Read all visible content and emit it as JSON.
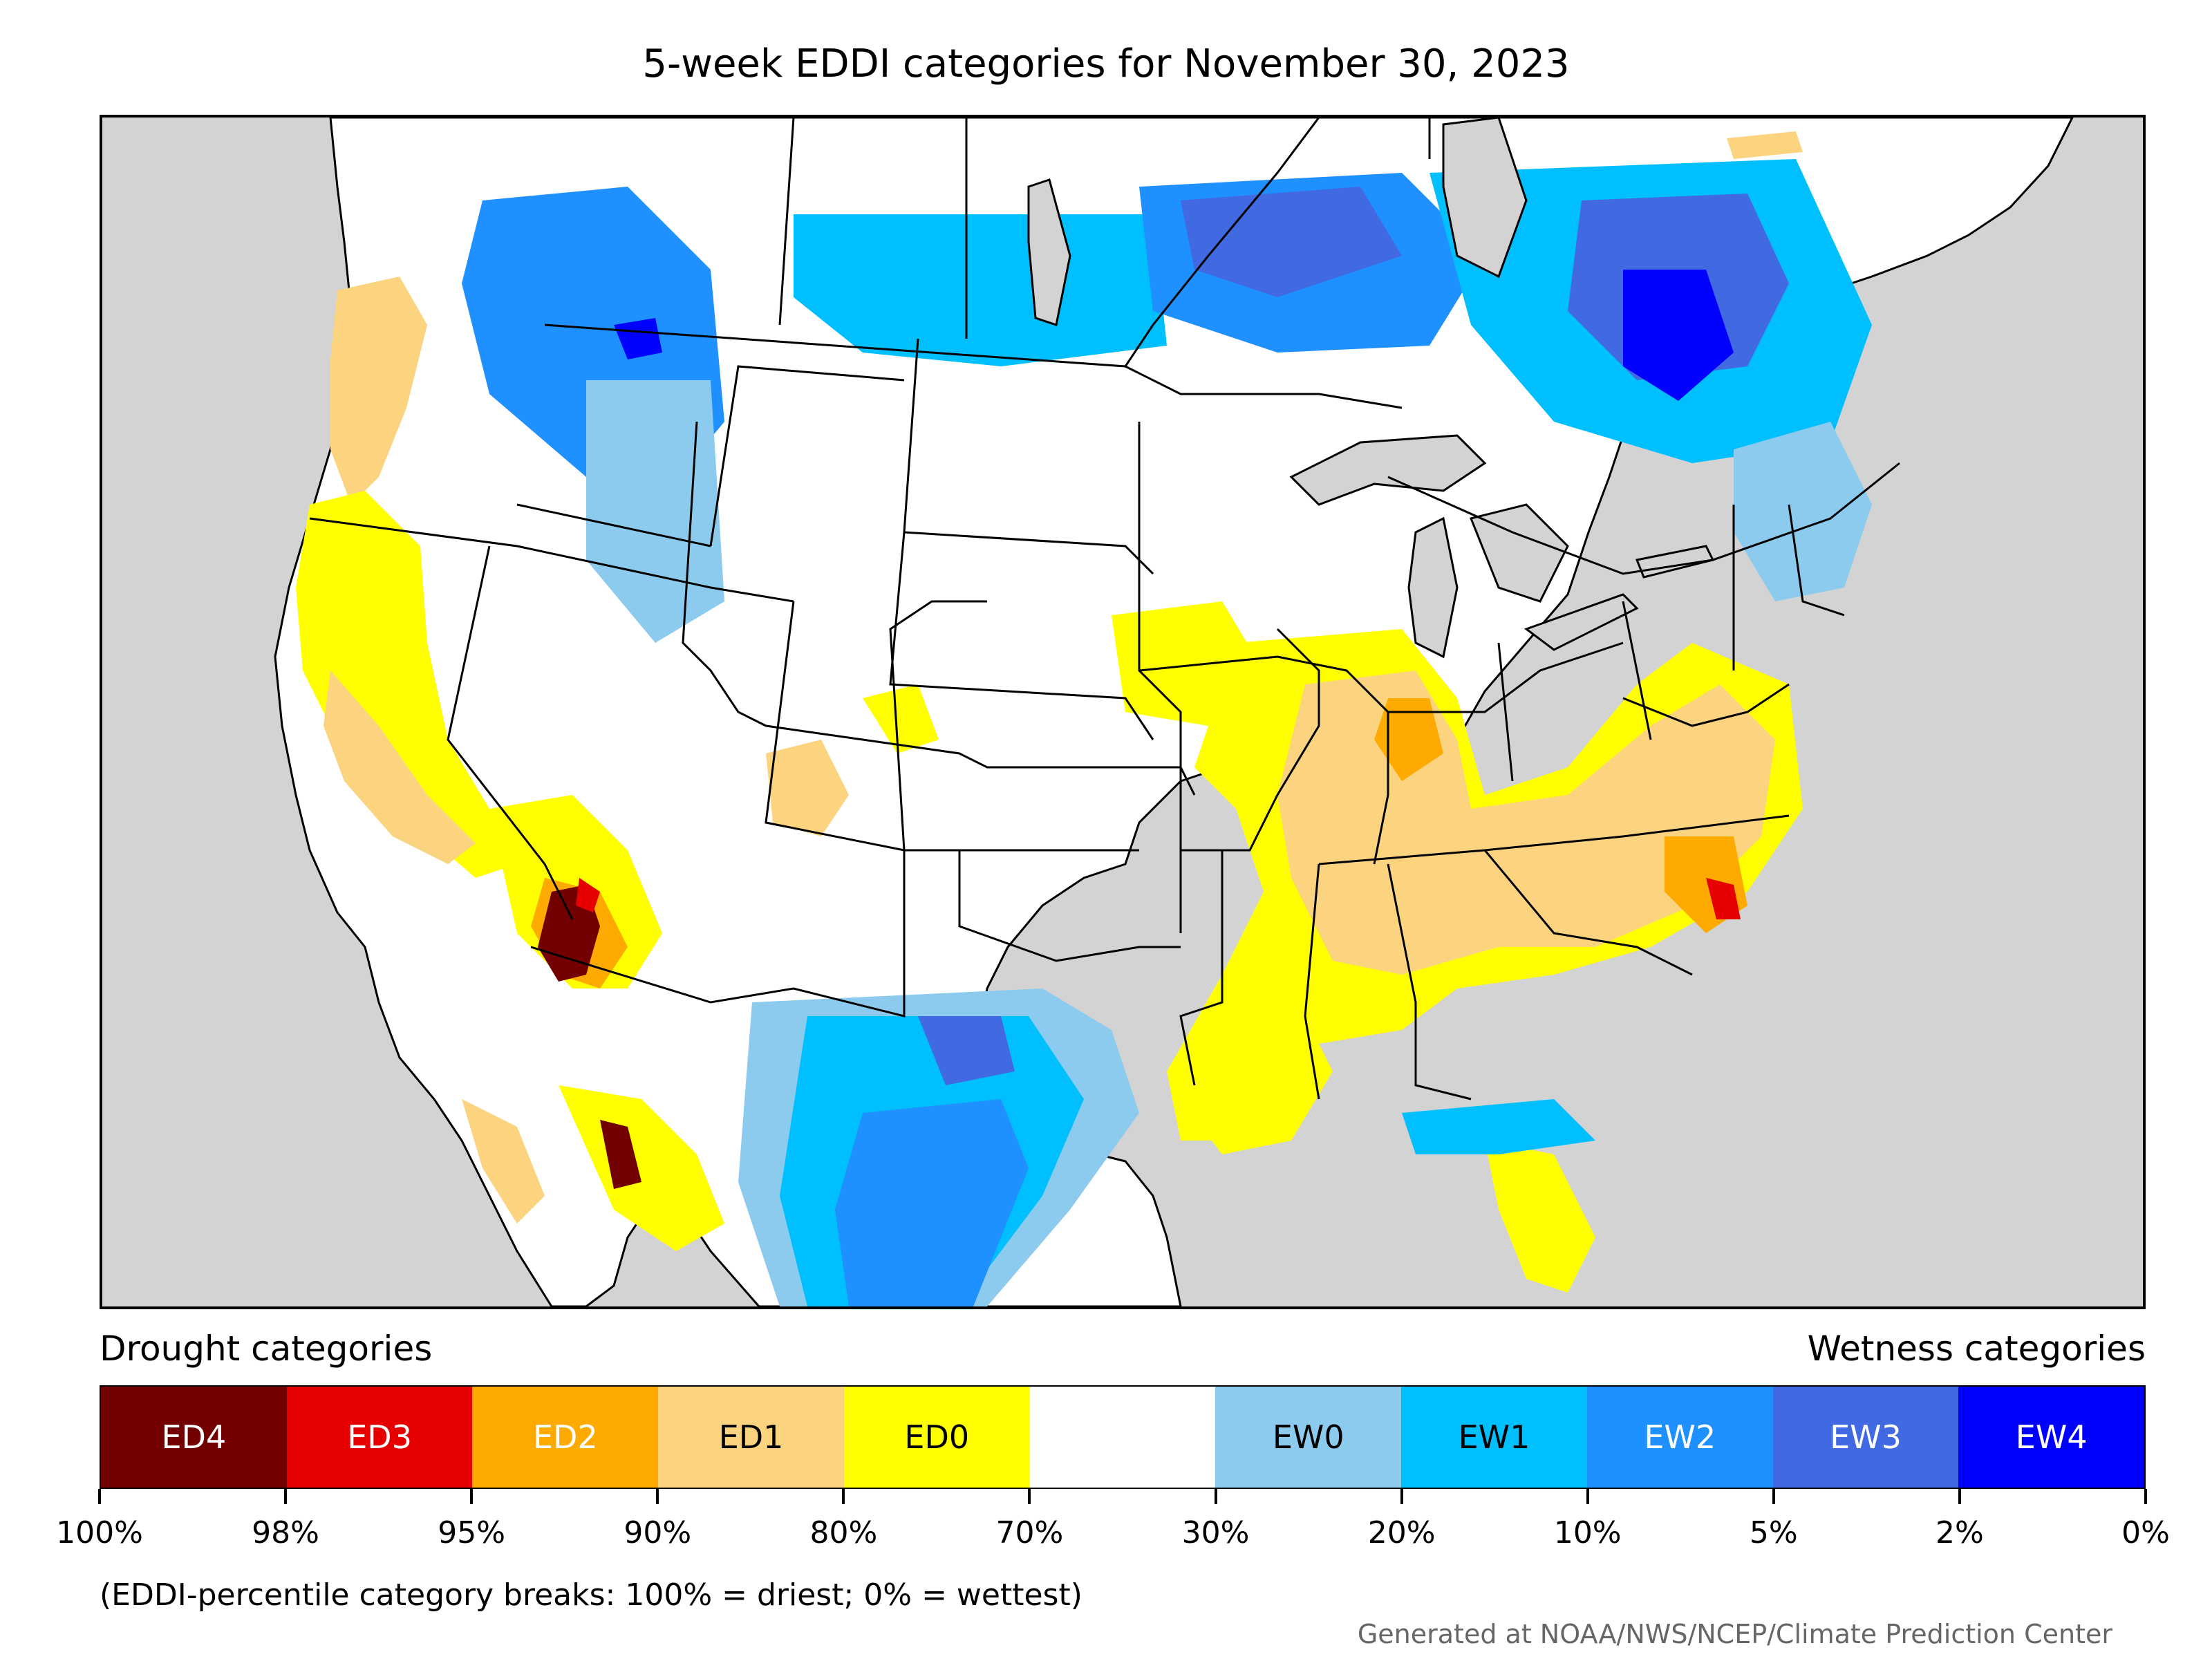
{
  "title": "5-week EDDI categories for November 30, 2023",
  "legend": {
    "drought_title": "Drought categories",
    "wetness_title": "Wetness categories",
    "categories": [
      {
        "label": "ED4",
        "color": "#730000",
        "text_color": "#ffffff"
      },
      {
        "label": "ED3",
        "color": "#e60000",
        "text_color": "#ffffff"
      },
      {
        "label": "ED2",
        "color": "#ffaa00",
        "text_color": "#ffffff"
      },
      {
        "label": "ED1",
        "color": "#fcd37f",
        "text_color": "#000000"
      },
      {
        "label": "ED0",
        "color": "#ffff00",
        "text_color": "#000000"
      },
      {
        "label": "",
        "color": "#ffffff",
        "text_color": "#000000"
      },
      {
        "label": "EW0",
        "color": "#8ccbee",
        "text_color": "#000000"
      },
      {
        "label": "EW1",
        "color": "#00bfff",
        "text_color": "#000000"
      },
      {
        "label": "EW2",
        "color": "#1e90ff",
        "text_color": "#ffffff"
      },
      {
        "label": "EW3",
        "color": "#4169e1",
        "text_color": "#ffffff"
      },
      {
        "label": "EW4",
        "color": "#0000ff",
        "text_color": "#ffffff"
      }
    ],
    "ticks": [
      "100%",
      "98%",
      "95%",
      "90%",
      "80%",
      "70%",
      "30%",
      "20%",
      "10%",
      "5%",
      "2%",
      "0%"
    ]
  },
  "note": "(EDDI-percentile category breaks: 100% = driest; 0% = wettest)",
  "credit": "Generated at NOAA/NWS/NCEP/Climate Prediction Center",
  "map_colors": {
    "ocean_other": "#d3d3d3",
    "land": "#ffffff",
    "lakes": "#d3d3d3"
  }
}
